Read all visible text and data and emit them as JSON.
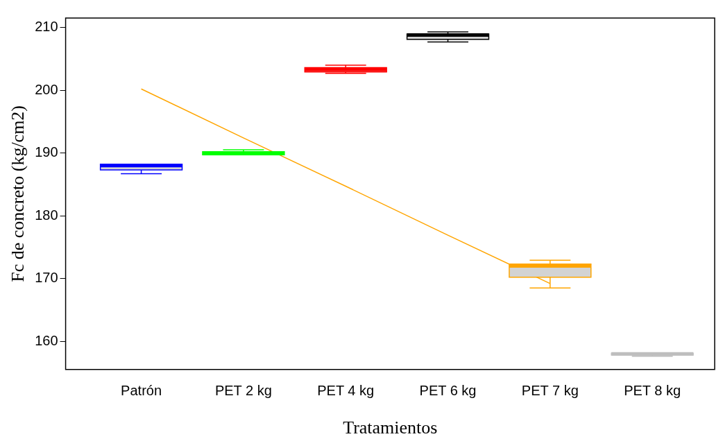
{
  "chart_data": {
    "type": "box",
    "xlabel": "Tratamientos",
    "ylabel": "Fc de concreto (kg/cm2)",
    "categories": [
      "Patrón",
      "PET 2 kg",
      "PET 4 kg",
      "PET 6 kg",
      "PET 7 kg",
      "PET 8 kg"
    ],
    "colors": [
      "#0000ff",
      "#00ff00",
      "#ff0000",
      "#000000",
      "#ffa500",
      "#bebebe"
    ],
    "boxes": [
      {
        "low": 186.7,
        "q1": 187.3,
        "median": 188.0,
        "q3": 188.2,
        "high": 188.2
      },
      {
        "low": 189.7,
        "q1": 189.7,
        "median": 190.0,
        "q3": 190.2,
        "high": 190.5
      },
      {
        "low": 202.7,
        "q1": 202.9,
        "median": 203.3,
        "q3": 203.6,
        "high": 204.0
      },
      {
        "low": 207.7,
        "q1": 208.1,
        "median": 208.8,
        "q3": 208.95,
        "high": 209.3
      },
      {
        "low": 168.5,
        "q1": 170.2,
        "median": 172.0,
        "q3": 172.3,
        "high": 172.9
      },
      {
        "low": 157.6,
        "q1": 157.8,
        "median": 158.0,
        "q3": 158.1,
        "high": 158.1
      }
    ],
    "series": [
      {
        "type": "line",
        "values": [
          200.2,
          192.4,
          184.7,
          176.9,
          169.2,
          null
        ],
        "color": "#ffa500"
      }
    ],
    "ylim": [
      155.5,
      211.5
    ],
    "yticks": [
      160,
      170,
      180,
      190,
      200,
      210
    ],
    "grid": false,
    "legend": false
  }
}
